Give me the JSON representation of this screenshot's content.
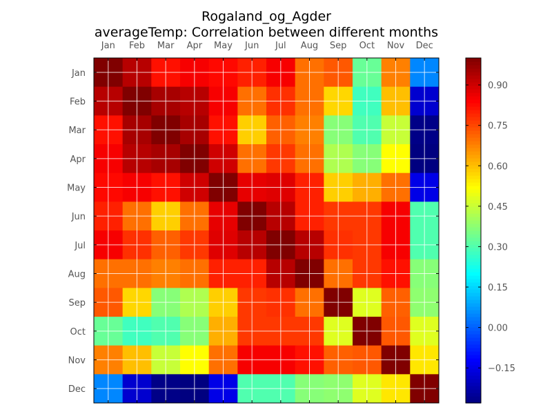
{
  "chart_data": {
    "type": "heatmap",
    "title": "Rogaland_og_Agder",
    "subtitle": "averageTemp: Correlation between different months",
    "xlabel": "",
    "ylabel": "",
    "x_categories": [
      "Jan",
      "Feb",
      "Mar",
      "Apr",
      "May",
      "Jun",
      "Jul",
      "Aug",
      "Sep",
      "Oct",
      "Nov",
      "Dec"
    ],
    "y_categories": [
      "Jan",
      "Feb",
      "Mar",
      "Apr",
      "May",
      "Jun",
      "Jul",
      "Aug",
      "Sep",
      "Oct",
      "Nov",
      "Dec"
    ],
    "values": [
      [
        1.0,
        0.93,
        0.82,
        0.85,
        0.83,
        0.8,
        0.85,
        0.7,
        0.73,
        0.33,
        0.68,
        0.05
      ],
      [
        0.93,
        1.0,
        0.95,
        0.93,
        0.85,
        0.7,
        0.78,
        0.7,
        0.57,
        0.28,
        0.6,
        -0.18
      ],
      [
        0.82,
        0.95,
        1.0,
        0.95,
        0.82,
        0.58,
        0.72,
        0.68,
        0.37,
        0.3,
        0.45,
        -0.27
      ],
      [
        0.85,
        0.93,
        0.95,
        1.0,
        0.9,
        0.7,
        0.77,
        0.7,
        0.42,
        0.37,
        0.52,
        -0.28
      ],
      [
        0.83,
        0.85,
        0.82,
        0.9,
        1.0,
        0.87,
        0.88,
        0.8,
        0.58,
        0.62,
        0.7,
        -0.15
      ],
      [
        0.8,
        0.7,
        0.58,
        0.7,
        0.87,
        1.0,
        0.93,
        0.8,
        0.77,
        0.77,
        0.85,
        0.3
      ],
      [
        0.85,
        0.78,
        0.72,
        0.77,
        0.88,
        0.93,
        1.0,
        0.93,
        0.78,
        0.77,
        0.85,
        0.3
      ],
      [
        0.7,
        0.7,
        0.68,
        0.7,
        0.8,
        0.8,
        0.93,
        1.0,
        0.7,
        0.77,
        0.82,
        0.37
      ],
      [
        0.73,
        0.57,
        0.37,
        0.42,
        0.58,
        0.77,
        0.78,
        0.7,
        1.0,
        0.48,
        0.72,
        0.38
      ],
      [
        0.33,
        0.28,
        0.3,
        0.37,
        0.62,
        0.77,
        0.77,
        0.77,
        0.48,
        1.0,
        0.73,
        0.48
      ],
      [
        0.68,
        0.6,
        0.45,
        0.52,
        0.7,
        0.85,
        0.85,
        0.82,
        0.72,
        0.73,
        1.0,
        0.55
      ],
      [
        0.05,
        -0.18,
        -0.27,
        -0.28,
        -0.15,
        0.3,
        0.3,
        0.37,
        0.38,
        0.48,
        0.55,
        1.0
      ]
    ],
    "colormap": "jet",
    "vmin": -0.28,
    "vmax": 1.0,
    "colorbar_ticks": [
      -0.15,
      0.0,
      0.15,
      0.3,
      0.45,
      0.6,
      0.75,
      0.9
    ],
    "colorbar_tick_labels": [
      "−0.15",
      "0.00",
      "0.15",
      "0.30",
      "0.45",
      "0.60",
      "0.75",
      "0.90"
    ],
    "x_tick_position": "top",
    "grid": true
  }
}
